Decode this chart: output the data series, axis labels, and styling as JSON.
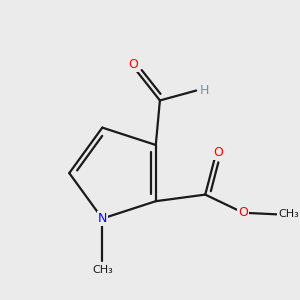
{
  "background_color": "#EBEBEB",
  "bond_color": "#1a1a1a",
  "atom_colors": {
    "O": "#FF0000",
    "N": "#0000FF",
    "H": "#5F9EA0",
    "C": "#1a1a1a"
  },
  "bond_width": 1.6,
  "fig_bg": "#EBEBEB"
}
